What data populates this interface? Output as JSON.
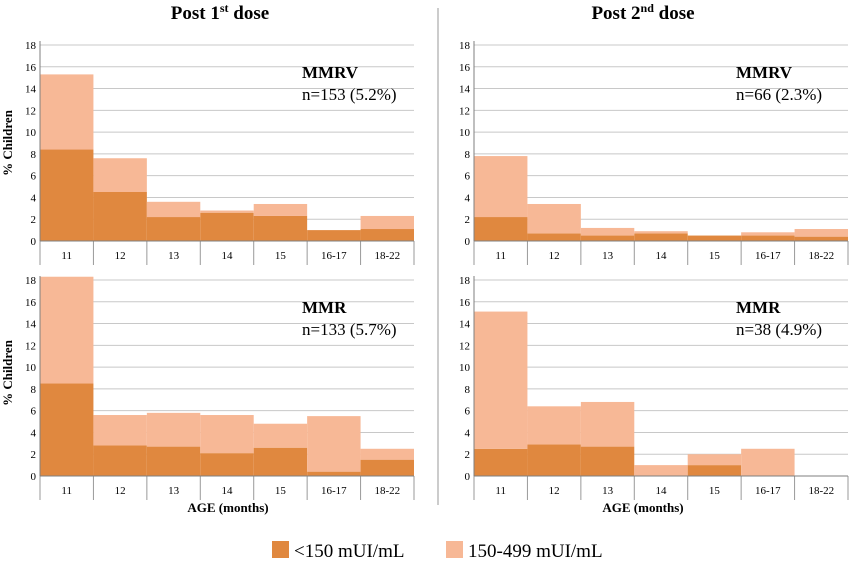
{
  "columns": [
    {
      "title_base": "Post 1",
      "title_sup": "st",
      "title_tail": " dose"
    },
    {
      "title_base": "Post 2",
      "title_sup": "nd",
      "title_tail": " dose"
    }
  ],
  "ylabel": "% Children",
  "xlabel": "AGE (months)",
  "legend": [
    {
      "label": "<150 mUI/mL",
      "color": "#e0883f"
    },
    {
      "label": "150-499 mUI/mL",
      "color": "#f7b896"
    }
  ],
  "chart_data": [
    {
      "type": "bar",
      "stacked": true,
      "panel": "Post 1st dose — MMRV",
      "title": "MMRV",
      "subtitle": "n=153 (5.2%)",
      "categories": [
        "11",
        "12",
        "13",
        "14",
        "15",
        "16-17",
        "18-22"
      ],
      "series": [
        {
          "name": "<150 mUI/mL",
          "values": [
            8.4,
            4.5,
            2.2,
            2.6,
            2.3,
            1.0,
            1.1
          ]
        },
        {
          "name": "150-499 mUI/mL",
          "values": [
            6.9,
            3.1,
            1.4,
            0.2,
            1.1,
            0.0,
            1.2
          ]
        }
      ],
      "ylim": [
        0,
        18
      ],
      "yticks": [
        0,
        2,
        4,
        6,
        8,
        10,
        12,
        14,
        16,
        18
      ],
      "grid": true
    },
    {
      "type": "bar",
      "stacked": true,
      "panel": "Post 2nd dose — MMRV",
      "title": "MMRV",
      "subtitle": "n=66 (2.3%)",
      "categories": [
        "11",
        "12",
        "13",
        "14",
        "15",
        "16-17",
        "18-22"
      ],
      "series": [
        {
          "name": "<150 mUI/mL",
          "values": [
            2.2,
            0.7,
            0.5,
            0.7,
            0.5,
            0.5,
            0.4
          ]
        },
        {
          "name": "150-499 mUI/mL",
          "values": [
            5.6,
            2.7,
            0.7,
            0.2,
            0.0,
            0.3,
            0.7
          ]
        }
      ],
      "ylim": [
        0,
        18
      ],
      "yticks": [
        0,
        2,
        4,
        6,
        8,
        10,
        12,
        14,
        16,
        18
      ],
      "grid": true
    },
    {
      "type": "bar",
      "stacked": true,
      "panel": "Post 1st dose — MMR",
      "title": "MMR",
      "subtitle": "n=133 (5.7%)",
      "categories": [
        "11",
        "12",
        "13",
        "14",
        "15",
        "16-17",
        "18-22"
      ],
      "series": [
        {
          "name": "<150 mUI/mL",
          "values": [
            8.5,
            2.8,
            2.7,
            2.1,
            2.6,
            0.4,
            1.5
          ]
        },
        {
          "name": "150-499 mUI/mL",
          "values": [
            9.8,
            2.8,
            3.1,
            3.5,
            2.2,
            5.1,
            1.0
          ]
        }
      ],
      "ylim": [
        0,
        18
      ],
      "yticks": [
        0,
        2,
        4,
        6,
        8,
        10,
        12,
        14,
        16,
        18
      ],
      "grid": true
    },
    {
      "type": "bar",
      "stacked": true,
      "panel": "Post 2nd dose — MMR",
      "title": "MMR",
      "subtitle": "n=38 (4.9%)",
      "categories": [
        "11",
        "12",
        "13",
        "14",
        "15",
        "16-17",
        "18-22"
      ],
      "series": [
        {
          "name": "<150 mUI/mL",
          "values": [
            2.5,
            2.9,
            2.7,
            0.0,
            1.0,
            0.0,
            0.0
          ]
        },
        {
          "name": "150-499 mUI/mL",
          "values": [
            12.6,
            3.5,
            4.1,
            1.0,
            1.0,
            2.5,
            0.0
          ]
        }
      ],
      "ylim": [
        0,
        18
      ],
      "yticks": [
        0,
        2,
        4,
        6,
        8,
        10,
        12,
        14,
        16,
        18
      ],
      "grid": true
    }
  ]
}
